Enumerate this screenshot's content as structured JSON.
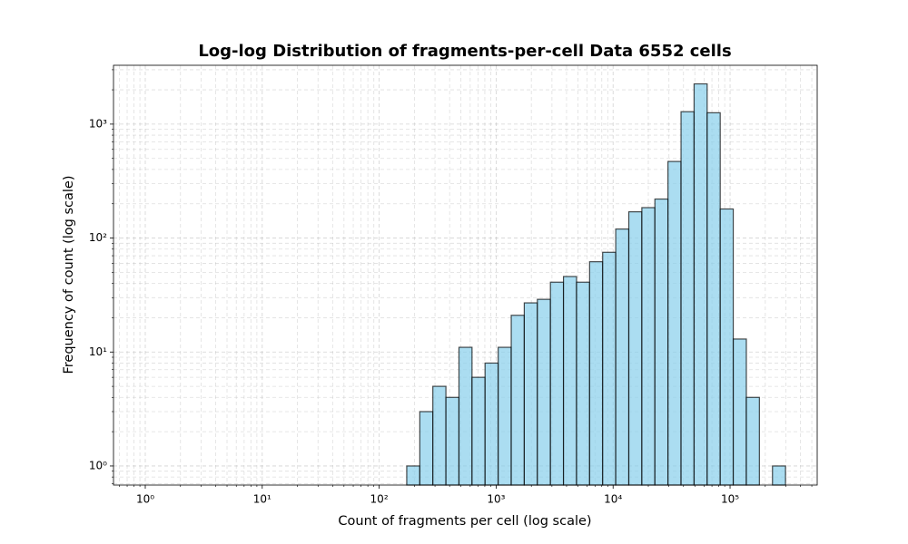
{
  "chart_data": {
    "type": "histogram",
    "title": "Log-log Distribution of fragments-per-cell Data 6552 cells",
    "x_label": "Count of fragments per cell (log scale)",
    "y_label": "Frequency of count (log scale)",
    "bins": [
      172,
      222.5,
      287.6,
      372,
      481,
      622,
      804,
      1041,
      1346,
      1740,
      2251,
      2911,
      3765,
      4869,
      6295,
      8141,
      10530,
      13620,
      17610,
      22770,
      29450,
      38090,
      49260,
      63710,
      82380,
      106500,
      137800,
      178200,
      230500,
      298000
    ],
    "values": [
      1,
      3,
      5,
      4,
      11,
      6,
      8,
      11,
      21,
      27,
      29,
      41,
      46,
      41,
      62,
      75,
      120,
      170,
      185,
      220,
      470,
      1285,
      2255,
      1258,
      180,
      13,
      4,
      0,
      1
    ],
    "color": "#87ceeb",
    "edgecolor": "#000000",
    "opacity": 0.7,
    "xscale": "log",
    "yscale": "log",
    "grid": true,
    "xlim": [
      0.535,
      556000
    ],
    "ylim": [
      0.68,
      3283
    ],
    "xticks": [
      {
        "value": 1,
        "label": "10⁰"
      },
      {
        "value": 10,
        "label": "10¹"
      },
      {
        "value": 100,
        "label": "10²"
      },
      {
        "value": 1000,
        "label": "10³"
      },
      {
        "value": 10000,
        "label": "10⁴"
      },
      {
        "value": 100000,
        "label": "10⁵"
      }
    ],
    "yticks": [
      {
        "value": 1,
        "label": "10⁰"
      },
      {
        "value": 10,
        "label": "10¹"
      },
      {
        "value": 100,
        "label": "10²"
      },
      {
        "value": 1000,
        "label": "10³"
      }
    ],
    "xticks_minor": [
      0.6,
      0.7,
      0.8,
      0.9,
      2,
      3,
      4,
      5,
      6,
      7,
      8,
      9,
      20,
      30,
      40,
      50,
      60,
      70,
      80,
      90,
      200,
      300,
      400,
      500,
      600,
      700,
      800,
      900,
      2000,
      3000,
      4000,
      5000,
      6000,
      7000,
      8000,
      9000,
      20000,
      30000,
      40000,
      50000,
      60000,
      70000,
      80000,
      90000,
      200000,
      300000,
      400000,
      500000
    ],
    "yticks_minor": [
      0.7,
      0.8,
      0.9,
      2,
      3,
      4,
      5,
      6,
      7,
      8,
      9,
      20,
      30,
      40,
      50,
      60,
      70,
      80,
      90,
      200,
      300,
      400,
      500,
      600,
      700,
      800,
      900,
      2000,
      3000
    ]
  }
}
